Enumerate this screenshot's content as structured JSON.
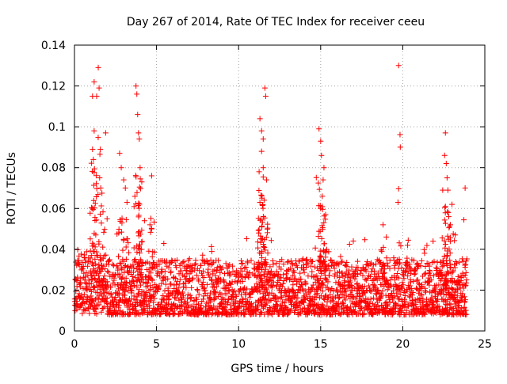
{
  "chart_data": {
    "type": "scatter",
    "title": "Day 267 of 2014, Rate Of TEC Index for receiver ceeu",
    "xlabel": "GPS time / hours",
    "ylabel": "ROTI / TECUs",
    "xlim": [
      0,
      25
    ],
    "ylim": [
      0,
      0.14
    ],
    "x_ticks": [
      0,
      5,
      10,
      15,
      20,
      25
    ],
    "x_tick_labels": [
      "0",
      "5",
      "10",
      "15",
      "20",
      "25"
    ],
    "y_ticks": [
      0,
      0.02,
      0.04,
      0.06,
      0.08,
      0.1,
      0.12,
      0.14
    ],
    "y_tick_labels": [
      "0",
      "0.02",
      "0.04",
      "0.06",
      "0.08",
      "0.1",
      "0.12",
      "0.14"
    ],
    "grid": true,
    "marker": "+",
    "series": [
      {
        "name": "ROTI",
        "color": "#ff0000",
        "baseline_range": [
          0,
          23.9
        ],
        "baseline_typical": [
          0.008,
          0.035
        ],
        "spikes": [
          {
            "x": 1.1,
            "y": 0.115
          },
          {
            "x": 1.2,
            "y": 0.122
          },
          {
            "x": 1.35,
            "y": 0.115
          },
          {
            "x": 1.45,
            "y": 0.129
          },
          {
            "x": 1.5,
            "y": 0.119
          },
          {
            "x": 1.6,
            "y": 0.07
          },
          {
            "x": 1.2,
            "y": 0.098
          },
          {
            "x": 1.1,
            "y": 0.089
          },
          {
            "x": 1.15,
            "y": 0.084
          },
          {
            "x": 1.9,
            "y": 0.097
          },
          {
            "x": 2.75,
            "y": 0.087
          },
          {
            "x": 2.85,
            "y": 0.08
          },
          {
            "x": 3.0,
            "y": 0.074
          },
          {
            "x": 3.1,
            "y": 0.07
          },
          {
            "x": 3.2,
            "y": 0.063
          },
          {
            "x": 3.75,
            "y": 0.12
          },
          {
            "x": 3.8,
            "y": 0.116
          },
          {
            "x": 3.85,
            "y": 0.106
          },
          {
            "x": 3.9,
            "y": 0.097
          },
          {
            "x": 3.95,
            "y": 0.094
          },
          {
            "x": 4.0,
            "y": 0.08
          },
          {
            "x": 4.1,
            "y": 0.073
          },
          {
            "x": 4.7,
            "y": 0.076
          },
          {
            "x": 4.6,
            "y": 0.052
          },
          {
            "x": 11.3,
            "y": 0.104
          },
          {
            "x": 11.4,
            "y": 0.098
          },
          {
            "x": 11.5,
            "y": 0.094
          },
          {
            "x": 11.6,
            "y": 0.119
          },
          {
            "x": 11.65,
            "y": 0.115
          },
          {
            "x": 11.4,
            "y": 0.088
          },
          {
            "x": 11.5,
            "y": 0.08
          },
          {
            "x": 11.7,
            "y": 0.074
          },
          {
            "x": 11.3,
            "y": 0.063
          },
          {
            "x": 11.25,
            "y": 0.078
          },
          {
            "x": 14.9,
            "y": 0.099
          },
          {
            "x": 15.0,
            "y": 0.093
          },
          {
            "x": 15.05,
            "y": 0.086
          },
          {
            "x": 15.2,
            "y": 0.08
          },
          {
            "x": 15.15,
            "y": 0.074
          },
          {
            "x": 15.1,
            "y": 0.066
          },
          {
            "x": 15.0,
            "y": 0.06
          },
          {
            "x": 15.3,
            "y": 0.057
          },
          {
            "x": 19.75,
            "y": 0.13
          },
          {
            "x": 19.0,
            "y": 0.046
          },
          {
            "x": 18.8,
            "y": 0.052
          },
          {
            "x": 22.55,
            "y": 0.086
          },
          {
            "x": 22.6,
            "y": 0.097
          },
          {
            "x": 22.65,
            "y": 0.082
          },
          {
            "x": 22.7,
            "y": 0.075
          },
          {
            "x": 22.75,
            "y": 0.069
          },
          {
            "x": 22.6,
            "y": 0.061
          },
          {
            "x": 22.8,
            "y": 0.056
          },
          {
            "x": 23.0,
            "y": 0.062
          },
          {
            "x": 23.8,
            "y": 0.07
          },
          {
            "x": 23.2,
            "y": 0.047
          },
          {
            "x": 22.9,
            "y": 0.052
          }
        ]
      }
    ]
  }
}
